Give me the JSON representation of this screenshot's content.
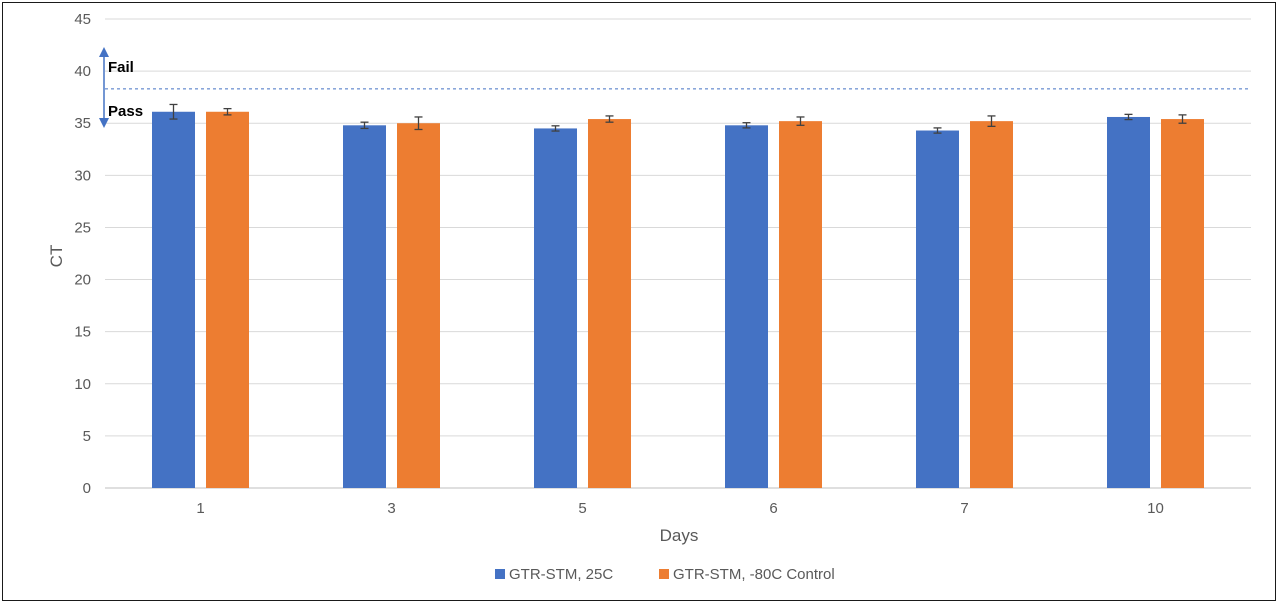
{
  "chart_data": {
    "type": "bar",
    "title": "",
    "xlabel": "Days",
    "ylabel": "CT",
    "ylim": [
      0,
      45
    ],
    "yticks": [
      0,
      5,
      10,
      15,
      20,
      25,
      30,
      35,
      40,
      45
    ],
    "grid": "horizontal",
    "legend_position": "bottom",
    "categories": [
      "1",
      "3",
      "5",
      "6",
      "7",
      "10"
    ],
    "series": [
      {
        "name": "GTR-STM, 25C",
        "color": "#4472C4",
        "values": [
          36.1,
          34.8,
          34.5,
          34.8,
          34.3,
          35.6
        ],
        "errors": [
          0.7,
          0.3,
          0.25,
          0.25,
          0.25,
          0.25
        ]
      },
      {
        "name": "GTR-STM, -80C Control",
        "color": "#ED7D31",
        "values": [
          36.1,
          35.0,
          35.4,
          35.2,
          35.2,
          35.4
        ],
        "errors": [
          0.3,
          0.6,
          0.3,
          0.4,
          0.5,
          0.4
        ]
      }
    ],
    "threshold": {
      "value": 38.3,
      "style": "dashed",
      "color": "#4472C4"
    },
    "annotations": {
      "upper": "Fail",
      "lower": "Pass"
    }
  }
}
